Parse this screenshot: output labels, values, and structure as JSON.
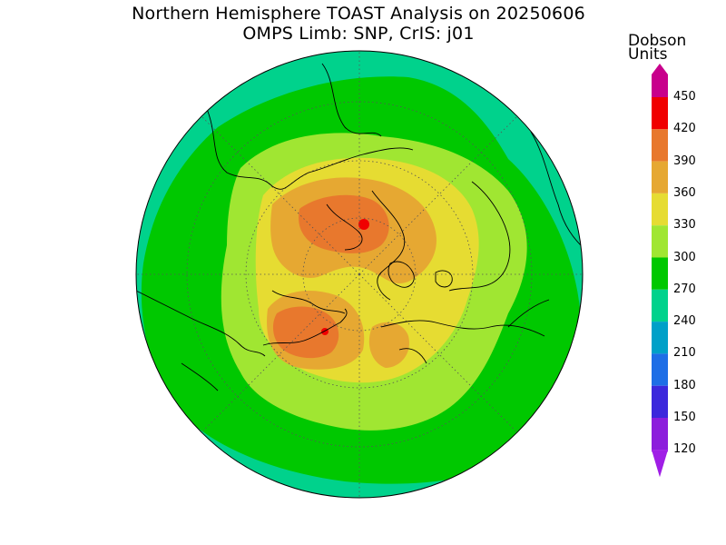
{
  "header": {
    "title": "Northern Hemisphere TOAST Analysis on 20250606",
    "subtitle": "OMPS Limb: SNP, CrIS: j01"
  },
  "colorbar": {
    "unit_line1": "Dobson",
    "unit_line2": "Units",
    "levels": [
      {
        "value": "450",
        "color": "#c8008c"
      },
      {
        "value": "420",
        "color": "#f00000"
      },
      {
        "value": "390",
        "color": "#e8782d"
      },
      {
        "value": "360",
        "color": "#e6a832"
      },
      {
        "value": "330",
        "color": "#e6dc32"
      },
      {
        "value": "300",
        "color": "#a0e632"
      },
      {
        "value": "270",
        "color": "#00c800"
      },
      {
        "value": "240",
        "color": "#00d28c"
      },
      {
        "value": "210",
        "color": "#00a0c8"
      },
      {
        "value": "180",
        "color": "#1e6ee6"
      },
      {
        "value": "150",
        "color": "#3c28dc"
      },
      {
        "value": "120",
        "color": "#8c1edc"
      }
    ],
    "below_min_color": "#a01ee6"
  },
  "map": {
    "projection": "north-polar-stereographic",
    "colors": {
      "band_240": "#00d28c",
      "band_270": "#00c800",
      "band_300": "#a0e632",
      "band_330": "#e6dc32",
      "band_360": "#e6a832",
      "band_390": "#e8782d",
      "band_420": "#f00000"
    }
  }
}
